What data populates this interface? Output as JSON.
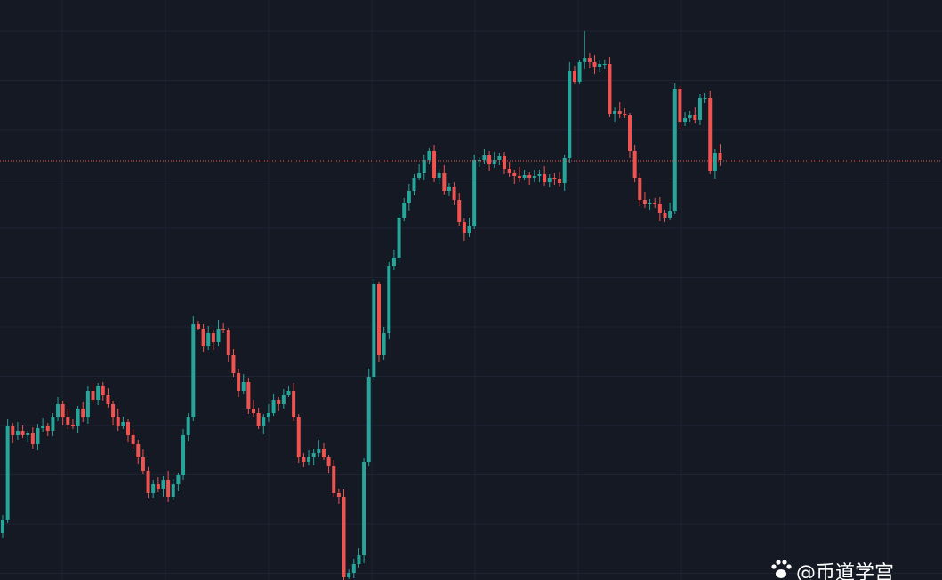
{
  "chart_data": {
    "type": "candlestick",
    "up_color": "#26a69a",
    "down_color": "#ef5350",
    "grid": true,
    "ylim": [
      0,
      653
    ],
    "price_line": 472,
    "price_line_color": "#ef5350",
    "open": [
      53,
      68,
      173,
      163,
      168,
      163,
      165,
      153,
      171,
      173,
      168,
      183,
      198,
      183,
      175,
      173,
      193,
      183,
      213,
      203,
      218,
      208,
      198,
      183,
      173,
      178,
      163,
      153,
      138,
      123,
      98,
      108,
      103,
      113,
      93,
      108,
      118,
      163,
      183,
      288,
      283,
      263,
      278,
      268,
      283,
      281,
      253,
      233,
      213,
      223,
      193,
      188,
      173,
      183,
      188,
      203,
      198,
      208,
      213,
      183,
      138,
      133,
      138,
      143,
      148,
      138,
      128,
      98,
      93,
      3,
      8,
      18,
      28,
      133,
      228,
      333,
      253,
      278,
      353,
      363,
      408,
      425,
      438,
      453,
      458,
      473,
      483,
      453,
      458,
      438,
      443,
      428,
      403,
      391,
      398,
      473,
      473,
      478,
      468,
      473,
      477,
      463,
      458,
      455,
      453,
      456,
      453,
      455,
      457,
      448,
      453,
      451,
      447,
      475,
      573,
      561,
      583,
      588,
      583,
      578,
      581,
      581,
      525,
      528,
      525,
      523,
      483,
      453,
      428,
      423,
      425,
      423,
      413,
      408,
      415,
      553,
      516,
      520,
      523,
      518,
      543,
      543,
      461,
      481
    ],
    "high": [
      73,
      181,
      177,
      178,
      174,
      168,
      172,
      176,
      182,
      177,
      188,
      206,
      202,
      193,
      181,
      196,
      200,
      218,
      222,
      222,
      223,
      216,
      202,
      193,
      184,
      181,
      170,
      158,
      147,
      127,
      113,
      116,
      117,
      123,
      114,
      121,
      170,
      188,
      297,
      292,
      288,
      286,
      282,
      293,
      289,
      284,
      260,
      238,
      232,
      227,
      203,
      194,
      187,
      198,
      209,
      206,
      215,
      218,
      222,
      187,
      143,
      146,
      147,
      158,
      154,
      141,
      135,
      103,
      102,
      12,
      24,
      36,
      137,
      238,
      339,
      336,
      285,
      358,
      372,
      412,
      430,
      446,
      457,
      468,
      479,
      486,
      490,
      463,
      467,
      447,
      448,
      436,
      407,
      408,
      479,
      476,
      485,
      483,
      482,
      481,
      482,
      471,
      462,
      465,
      462,
      459,
      462,
      462,
      466,
      457,
      458,
      459,
      479,
      583,
      579,
      586,
      618,
      593,
      591,
      585,
      586,
      589,
      532,
      538,
      531,
      526,
      490,
      458,
      437,
      429,
      430,
      431,
      417,
      425,
      559,
      556,
      527,
      528,
      532,
      547,
      548,
      551,
      485,
      491
    ],
    "low": [
      47,
      64,
      154,
      158,
      160,
      155,
      148,
      146,
      167,
      162,
      162,
      179,
      174,
      170,
      170,
      165,
      178,
      176,
      199,
      197,
      202,
      194,
      174,
      168,
      170,
      155,
      148,
      131,
      119,
      92,
      92,
      99,
      94,
      88,
      90,
      100,
      113,
      156,
      179,
      282,
      257,
      259,
      259,
      263,
      278,
      245,
      228,
      206,
      209,
      187,
      183,
      170,
      164,
      178,
      185,
      190,
      193,
      206,
      179,
      132,
      127,
      129,
      129,
      138,
      135,
      120,
      93,
      86,
      0,
      1,
      2,
      14,
      19,
      128,
      225,
      245,
      248,
      271,
      349,
      357,
      404,
      416,
      433,
      450,
      450,
      468,
      448,
      446,
      434,
      432,
      422,
      399,
      382,
      386,
      395,
      465,
      468,
      461,
      464,
      467,
      457,
      454,
      446,
      448,
      450,
      445,
      448,
      448,
      444,
      442,
      445,
      443,
      438,
      470,
      558,
      558,
      575,
      576,
      570,
      572,
      575,
      521,
      516,
      520,
      520,
      475,
      448,
      421,
      419,
      417,
      419,
      404,
      403,
      405,
      412,
      508,
      511,
      516,
      514,
      512,
      537,
      457,
      452,
      466
    ],
    "close": [
      68,
      173,
      163,
      168,
      163,
      165,
      153,
      171,
      173,
      168,
      183,
      198,
      183,
      175,
      173,
      193,
      183,
      213,
      203,
      218,
      208,
      198,
      183,
      173,
      178,
      163,
      153,
      138,
      123,
      98,
      108,
      103,
      113,
      93,
      108,
      118,
      163,
      183,
      288,
      283,
      263,
      278,
      268,
      283,
      281,
      253,
      233,
      213,
      223,
      193,
      188,
      173,
      183,
      188,
      203,
      198,
      208,
      213,
      183,
      138,
      133,
      138,
      143,
      148,
      138,
      128,
      98,
      93,
      3,
      8,
      18,
      28,
      133,
      228,
      333,
      253,
      278,
      353,
      363,
      408,
      425,
      438,
      453,
      458,
      473,
      483,
      453,
      458,
      438,
      443,
      428,
      403,
      391,
      398,
      473,
      473,
      478,
      468,
      473,
      477,
      463,
      458,
      455,
      453,
      456,
      453,
      455,
      457,
      448,
      453,
      451,
      447,
      475,
      573,
      561,
      583,
      588,
      583,
      578,
      581,
      581,
      525,
      528,
      525,
      523,
      483,
      453,
      428,
      423,
      425,
      423,
      413,
      408,
      415,
      553,
      516,
      520,
      523,
      518,
      543,
      543,
      461,
      481,
      473
    ]
  },
  "watermark": "@币道学宫"
}
